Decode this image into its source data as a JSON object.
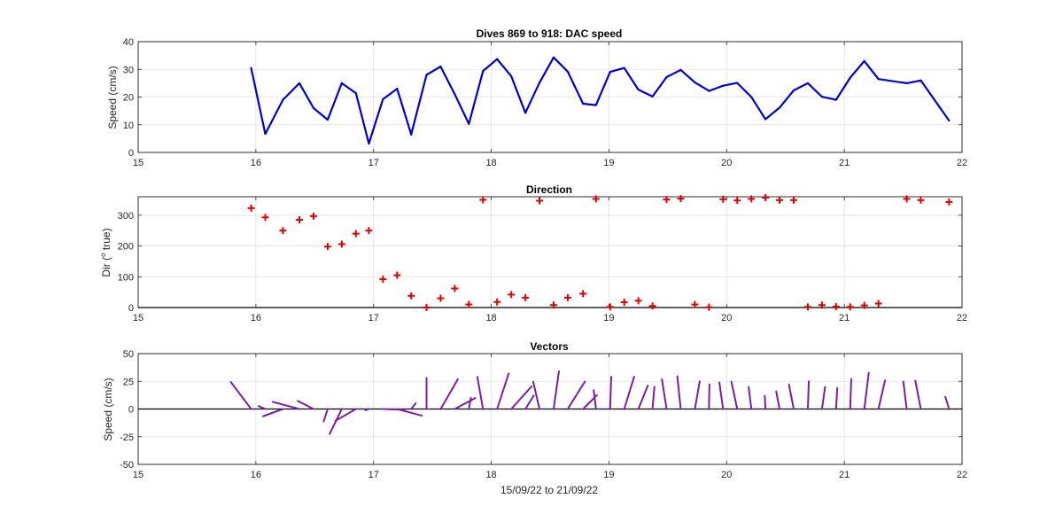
{
  "chart_data": [
    {
      "type": "line",
      "title": "Dives 869 to 918: DAC speed",
      "xlabel": "",
      "ylabel": "Speed (cm/s)",
      "xlim": [
        15,
        22
      ],
      "ylim": [
        0,
        40
      ],
      "xticks": [
        15,
        16,
        17,
        18,
        19,
        20,
        21,
        22
      ],
      "yticks": [
        0,
        10,
        20,
        30,
        40
      ],
      "grid": true,
      "color": "#0000cc",
      "x": [
        15.96,
        16.08,
        16.23,
        16.37,
        16.49,
        16.61,
        16.73,
        16.85,
        16.96,
        17.08,
        17.2,
        17.32,
        17.45,
        17.57,
        17.69,
        17.81,
        17.93,
        18.05,
        18.17,
        18.29,
        18.41,
        18.53,
        18.65,
        18.78,
        18.89,
        19.01,
        19.13,
        19.25,
        19.37,
        19.49,
        19.61,
        19.73,
        19.85,
        19.97,
        20.09,
        20.21,
        20.33,
        20.45,
        20.57,
        20.69,
        20.81,
        20.93,
        21.05,
        21.17,
        21.29,
        21.53,
        21.65,
        21.89
      ],
      "y": [
        30.5,
        6.7,
        19,
        25,
        16,
        11.8,
        25,
        21.4,
        3.2,
        19.2,
        23,
        6.5,
        28,
        31,
        21,
        10.3,
        29.4,
        33.7,
        27.5,
        14.3,
        25.2,
        34.3,
        29.2,
        17.6,
        17.1,
        29.1,
        30.5,
        22.7,
        20.2,
        27.2,
        29.8,
        25.3,
        22.2,
        24.1,
        25.1,
        20,
        12,
        16.2,
        22.4,
        25,
        20.1,
        19,
        27,
        33,
        26.5,
        25,
        26,
        11.5
      ]
    },
    {
      "type": "scatter",
      "title": "Direction",
      "xlabel": "",
      "ylabel": "Dir (° true)",
      "ylabel_prefix": "Dir (",
      "ylabel_sup": "o",
      "ylabel_suffix": " true)",
      "xlim": [
        15,
        22
      ],
      "ylim": [
        0,
        360
      ],
      "xticks": [
        15,
        16,
        17,
        18,
        19,
        20,
        21,
        22
      ],
      "yticks": [
        0,
        100,
        200,
        300
      ],
      "grid": true,
      "marker": "+",
      "color": "#dd0000",
      "x": [
        15.96,
        16.08,
        16.23,
        16.37,
        16.49,
        16.61,
        16.73,
        16.85,
        16.96,
        17.08,
        17.2,
        17.32,
        17.45,
        17.57,
        17.69,
        17.81,
        17.93,
        18.05,
        18.17,
        18.29,
        18.41,
        18.53,
        18.65,
        18.78,
        18.89,
        19.01,
        19.13,
        19.25,
        19.37,
        19.49,
        19.61,
        19.73,
        19.85,
        19.97,
        20.09,
        20.21,
        20.33,
        20.45,
        20.57,
        20.69,
        20.81,
        20.93,
        21.05,
        21.17,
        21.29,
        21.53,
        21.65,
        21.89
      ],
      "y": [
        323,
        293,
        250,
        285,
        297,
        198,
        206,
        240,
        250,
        92,
        105,
        38,
        0,
        30,
        62,
        10,
        350,
        18,
        42,
        32,
        347,
        8,
        32,
        45,
        353,
        2,
        17,
        22,
        5,
        351,
        354,
        10,
        1,
        352,
        348,
        353,
        357,
        349,
        349,
        2,
        8,
        3,
        2,
        7,
        13,
        353,
        349,
        343
      ]
    },
    {
      "type": "vector",
      "title": "Vectors",
      "xlabel": "15/09/22 to 21/09/22",
      "ylabel": "Speed (cm/s)",
      "xlim": [
        15,
        22
      ],
      "ylim": [
        -50,
        50
      ],
      "xticks": [
        15,
        16,
        17,
        18,
        19,
        20,
        21,
        22
      ],
      "yticks": [
        -50,
        -25,
        0,
        25,
        50
      ],
      "grid": true,
      "color": "#7a1fa2",
      "note": "stick vectors from (x, 0) using speed and direction of the upper panels"
    }
  ]
}
